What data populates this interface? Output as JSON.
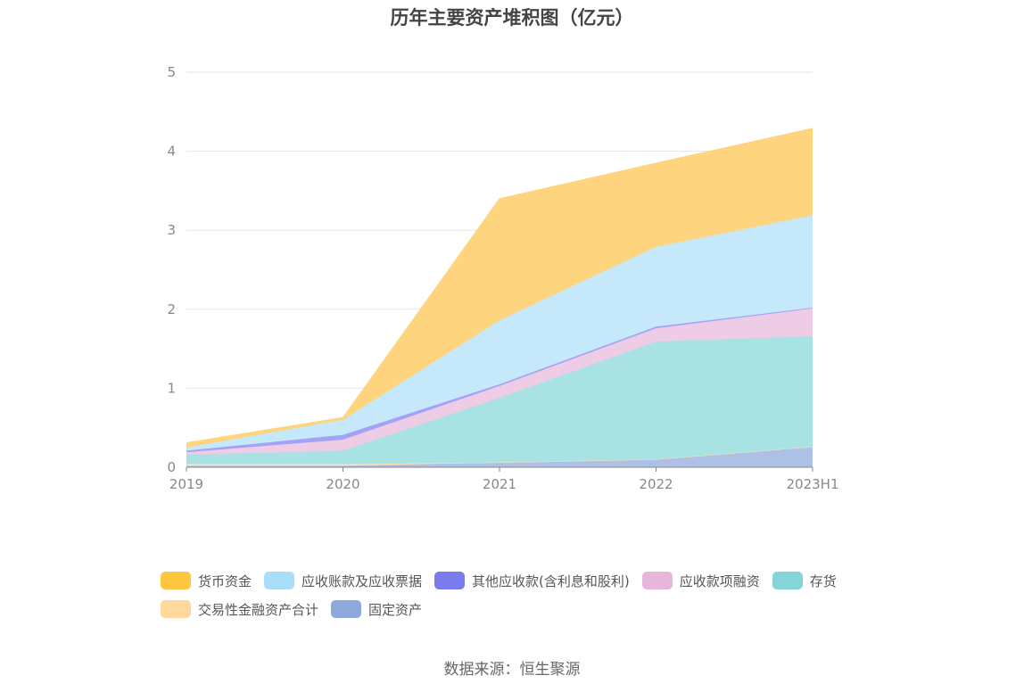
{
  "title": "历年主要资产堆积图（亿元）",
  "source": "数据来源：恒生聚源",
  "chart_data": {
    "type": "area",
    "stacked": true,
    "title": "历年主要资产堆积图（亿元）",
    "xlabel": "",
    "ylabel": "",
    "x": [
      "2019",
      "2020",
      "2021",
      "2022",
      "2023H1"
    ],
    "ylim": [
      0,
      5
    ],
    "yticks": [
      0,
      1,
      2,
      3,
      4,
      5
    ],
    "grid": true,
    "legend_position": "bottom",
    "series": [
      {
        "name": "固定资产",
        "color": "#8eaadc",
        "fill": "#aec0e6",
        "values": [
          0.02,
          0.02,
          0.06,
          0.1,
          0.26
        ]
      },
      {
        "name": "交易性金融资产合计",
        "color": "#ffd89b",
        "fill": "#fde5b6",
        "values": [
          0.02,
          0.02,
          0.0,
          0.0,
          0.0
        ]
      },
      {
        "name": "存货",
        "color": "#84d4d8",
        "fill": "#a9e2e3",
        "values": [
          0.12,
          0.17,
          0.82,
          1.49,
          1.4
        ]
      },
      {
        "name": "应收款项融资",
        "color": "#e8b6da",
        "fill": "#efcce5",
        "values": [
          0.03,
          0.14,
          0.15,
          0.17,
          0.35
        ]
      },
      {
        "name": "其他应收款(含利息和股利)",
        "color": "#7b7bf0",
        "fill": "#a3a3f5",
        "values": [
          0.02,
          0.06,
          0.02,
          0.02,
          0.01
        ]
      },
      {
        "name": "应收账款及应收票据",
        "color": "#a8def8",
        "fill": "#c5e9fa",
        "values": [
          0.04,
          0.19,
          0.81,
          1.01,
          1.17
        ]
      },
      {
        "name": "货币资金",
        "color": "#fec73f",
        "fill": "#fed57e",
        "values": [
          0.06,
          0.03,
          1.54,
          1.06,
          1.1
        ]
      }
    ]
  },
  "legend": [
    {
      "label": "货币资金",
      "color": "#fec73f"
    },
    {
      "label": "应收账款及应收票据",
      "color": "#a8def8"
    },
    {
      "label": "其他应收款(含利息和股利)",
      "color": "#7b7bf0"
    },
    {
      "label": "应收款项融资",
      "color": "#e8b6da"
    },
    {
      "label": "存货",
      "color": "#84d4d8"
    },
    {
      "label": "交易性金融资产合计",
      "color": "#ffd89b"
    },
    {
      "label": "固定资产",
      "color": "#8eaadc"
    }
  ]
}
